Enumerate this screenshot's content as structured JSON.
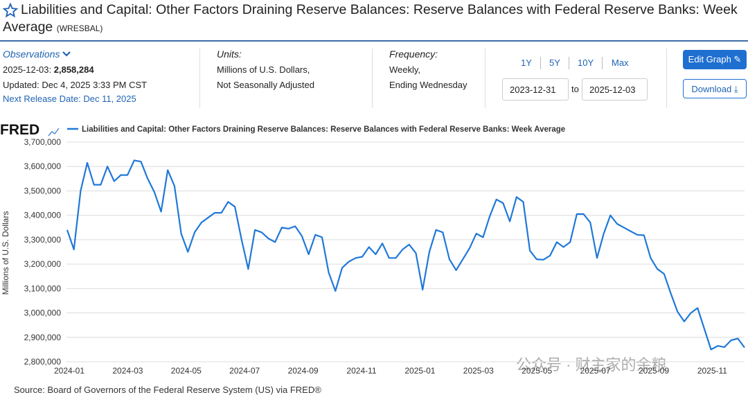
{
  "header": {
    "title": "Liabilities and Capital: Other Factors Draining Reserve Balances: Reserve Balances with Federal Reserve Banks: Week Average",
    "series_id": "(WRESBAL)"
  },
  "observations": {
    "label": "Observations",
    "date": "2025-12-03:",
    "value": "2,858,284",
    "updated": "Updated: Dec 4, 2025 3:33 PM CST",
    "next_release": "Next Release Date: Dec 11, 2025"
  },
  "units": {
    "label": "Units:",
    "lines": [
      "Millions of U.S. Dollars,",
      "Not Seasonally Adjusted"
    ]
  },
  "frequency": {
    "label": "Frequency:",
    "lines": [
      "Weekly,",
      "Ending Wednesday"
    ]
  },
  "range": {
    "buttons": [
      "1Y",
      "5Y",
      "10Y",
      "Max"
    ],
    "start": "2023-12-31",
    "to": "to",
    "end": "2025-12-03"
  },
  "actions": [
    "Edit Graph",
    "Download"
  ],
  "chart_data": {
    "type": "line",
    "logo": "FRED",
    "ylabel": "Millions of U.S. Dollars",
    "series": [
      {
        "name": "Liabilities and Capital: Other Factors Draining Reserve Balances: Reserve Balances with Federal Reserve Banks: Week Average",
        "color": "#1f78d8",
        "values": [
          3340000,
          3260000,
          3500000,
          3615000,
          3525000,
          3525000,
          3600000,
          3540000,
          3565000,
          3565000,
          3625000,
          3620000,
          3550000,
          3495000,
          3415000,
          3585000,
          3520000,
          3325000,
          3250000,
          3330000,
          3370000,
          3390000,
          3410000,
          3410000,
          3455000,
          3435000,
          3300000,
          3180000,
          3340000,
          3330000,
          3305000,
          3290000,
          3350000,
          3345000,
          3355000,
          3315000,
          3240000,
          3320000,
          3310000,
          3165000,
          3090000,
          3185000,
          3210000,
          3225000,
          3230000,
          3270000,
          3240000,
          3285000,
          3225000,
          3225000,
          3260000,
          3280000,
          3245000,
          3095000,
          3250000,
          3340000,
          3330000,
          3220000,
          3175000,
          3220000,
          3265000,
          3325000,
          3310000,
          3395000,
          3465000,
          3450000,
          3375000,
          3475000,
          3455000,
          3255000,
          3220000,
          3218000,
          3235000,
          3290000,
          3270000,
          3290000,
          3405000,
          3405000,
          3370000,
          3225000,
          3325000,
          3400000,
          3365000,
          3350000,
          3335000,
          3320000,
          3318000,
          3225000,
          3180000,
          3160000,
          3080000,
          3005000,
          2965000,
          3000000,
          3020000,
          2935000,
          2850000,
          2865000,
          2860000,
          2888000,
          2895000,
          2858284
        ]
      }
    ],
    "ylim": [
      2800000,
      3700000
    ],
    "yticks": [
      {
        "value": 2800000,
        "label": "2,800,000"
      },
      {
        "value": 2900000,
        "label": "2,900,000"
      },
      {
        "value": 3000000,
        "label": "3,000,000"
      },
      {
        "value": 3100000,
        "label": "3,100,000"
      },
      {
        "value": 3200000,
        "label": "3,200,000"
      },
      {
        "value": 3300000,
        "label": "3,300,000"
      },
      {
        "value": 3400000,
        "label": "3,400,000"
      },
      {
        "value": 3500000,
        "label": "3,500,000"
      },
      {
        "value": 3600000,
        "label": "3,600,000"
      },
      {
        "value": 3700000,
        "label": "3,700,000"
      }
    ],
    "xticks": [
      "2024-01",
      "2024-03",
      "2024-05",
      "2024-07",
      "2024-09",
      "2024-11",
      "2025-01",
      "2025-03",
      "2025-05",
      "2025-07",
      "2025-09",
      "2025-11"
    ],
    "grid": true
  },
  "source": "Source: Board of Governors of the Federal Reserve System (US) via FRED®",
  "watermark": "公众号 · 财主家的余粮"
}
